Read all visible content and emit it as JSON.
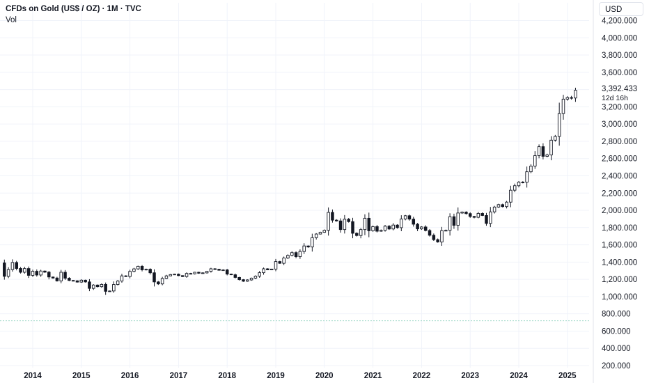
{
  "header": {
    "title": "CFDs on Gold (US$ / OZ) · 1M · TVC",
    "volume_label": "Vol"
  },
  "currency_button": "USD",
  "last_price": {
    "value": "3,392.433",
    "countdown": "12d 16h"
  },
  "chart_data": {
    "type": "candlestick",
    "title": "CFDs on Gold (US$ / OZ) · 1M · TVC",
    "xlabel": "",
    "ylabel": "",
    "y_ticks": [
      "200.000",
      "400.000",
      "600.000",
      "800.000",
      "1,000.000",
      "1,200.000",
      "1,400.000",
      "1,600.000",
      "1,800.000",
      "2,000.000",
      "2,200.000",
      "2,400.000",
      "2,600.000",
      "2,800.000",
      "3,000.000",
      "3,200.000",
      "3,400.000",
      "3,600.000",
      "3,800.000",
      "4,000.000",
      "4,200.000"
    ],
    "y_tick_values": [
      200,
      400,
      600,
      800,
      1000,
      1200,
      1400,
      1600,
      1800,
      2000,
      2200,
      2400,
      2600,
      2800,
      3000,
      3200,
      3400,
      3600,
      3800,
      4000,
      4200
    ],
    "ylim": [
      200,
      4200
    ],
    "x_ticks": [
      "2014",
      "2015",
      "2016",
      "2017",
      "2018",
      "2019",
      "2020",
      "2021",
      "2022",
      "2023",
      "2024",
      "2025"
    ],
    "x_tick_values": [
      "2014-01",
      "2015-01",
      "2016-01",
      "2017-01",
      "2018-01",
      "2019-01",
      "2020-01",
      "2021-01",
      "2022-01",
      "2023-01",
      "2024-01",
      "2025-01"
    ],
    "x_range": [
      "2013-06",
      "2025-09"
    ],
    "grid": true,
    "volume_line_level": 720,
    "close": [
      1235,
      1313,
      1395,
      1326,
      1282,
      1325,
      1246,
      1293,
      1250,
      1296,
      1283,
      1227,
      1215,
      1182,
      1282,
      1213,
      1187,
      1183,
      1168,
      1190,
      1170,
      1095,
      1134,
      1115,
      1141,
      1061,
      1065,
      1140,
      1180,
      1240,
      1233,
      1292,
      1321,
      1351,
      1310,
      1317,
      1276,
      1170,
      1147,
      1210,
      1240,
      1255,
      1260,
      1243,
      1232,
      1268,
      1264,
      1282,
      1271,
      1275,
      1293,
      1322,
      1317,
      1305,
      1309,
      1261,
      1253,
      1222,
      1196,
      1178,
      1193,
      1214,
      1237,
      1277,
      1322,
      1310,
      1319,
      1406,
      1386,
      1447,
      1478,
      1510,
      1463,
      1523,
      1587,
      1575,
      1683,
      1725,
      1745,
      1768,
      1976,
      1886,
      1877,
      1777,
      1897,
      1869,
      1734,
      1708,
      1777,
      1908,
      1763,
      1811,
      1758,
      1768,
      1816,
      1784,
      1829,
      1799,
      1900,
      1937,
      1898,
      1839,
      1785,
      1807,
      1766,
      1711,
      1660,
      1633,
      1765,
      1768,
      1926,
      1826,
      1969,
      1980,
      1962,
      1929,
      1919,
      1964,
      1940,
      1848,
      1982,
      2038,
      2066,
      2043,
      2095,
      2233,
      2285,
      2327,
      2326,
      2447,
      2513,
      2634,
      2738,
      2626,
      2642,
      2813,
      2857,
      3122,
      3289,
      3307,
      3302,
      3392
    ]
  }
}
